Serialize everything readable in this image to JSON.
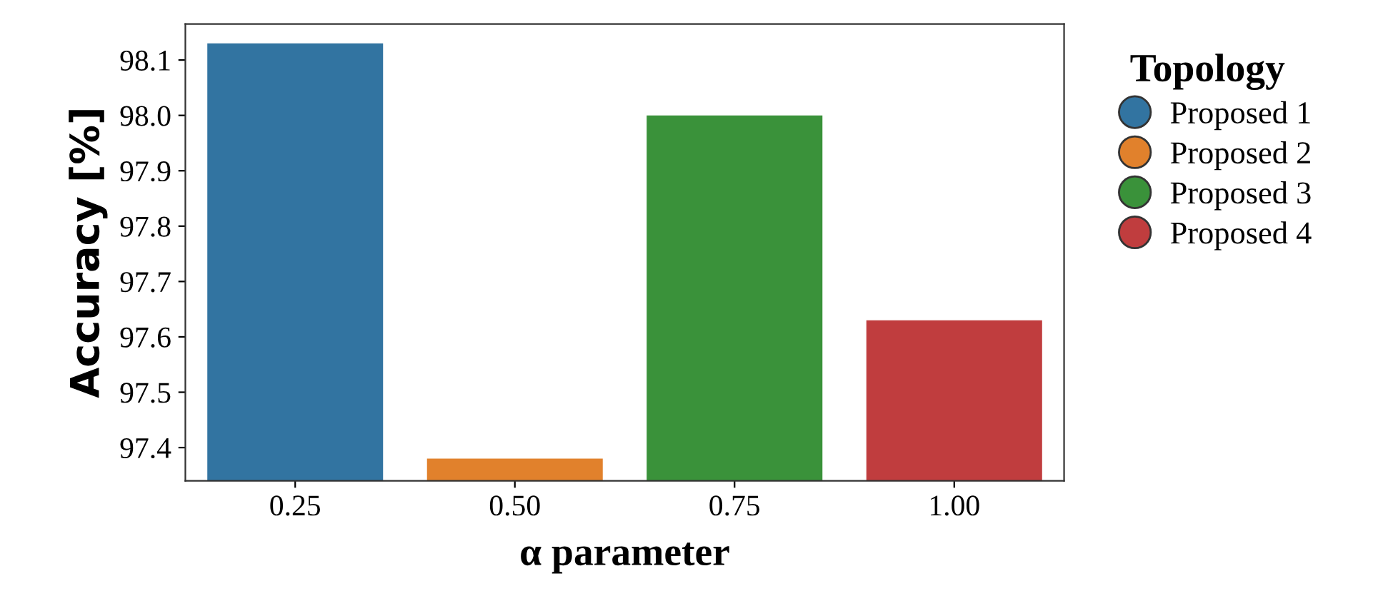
{
  "chart_data": {
    "type": "bar",
    "xlabel": "α parameter",
    "ylabel": "Accuracy [%]",
    "legend_title": "Topology",
    "categories": [
      "0.25",
      "0.50",
      "0.75",
      "1.00"
    ],
    "series": [
      {
        "name": "Proposed 1",
        "color": "#3274a1",
        "values": [
          98.13,
          null,
          null,
          null
        ]
      },
      {
        "name": "Proposed 2",
        "color": "#e1812c",
        "values": [
          null,
          97.38,
          null,
          null
        ]
      },
      {
        "name": "Proposed 3",
        "color": "#3a923a",
        "values": [
          null,
          null,
          98.0,
          null
        ]
      },
      {
        "name": "Proposed 4",
        "color": "#c03d3e",
        "values": [
          null,
          null,
          null,
          97.63
        ]
      }
    ],
    "ylim": [
      97.34,
      98.165
    ],
    "yticks": [
      {
        "value": 97.4,
        "label": "97.4"
      },
      {
        "value": 97.5,
        "label": "97.5"
      },
      {
        "value": 97.6,
        "label": "97.6"
      },
      {
        "value": 97.7,
        "label": "97.7"
      },
      {
        "value": 97.8,
        "label": "97.8"
      },
      {
        "value": 97.9,
        "label": "97.9"
      },
      {
        "value": 98.0,
        "label": "98.0"
      },
      {
        "value": 98.1,
        "label": "98.1"
      }
    ],
    "grid": false,
    "legend": "right"
  }
}
